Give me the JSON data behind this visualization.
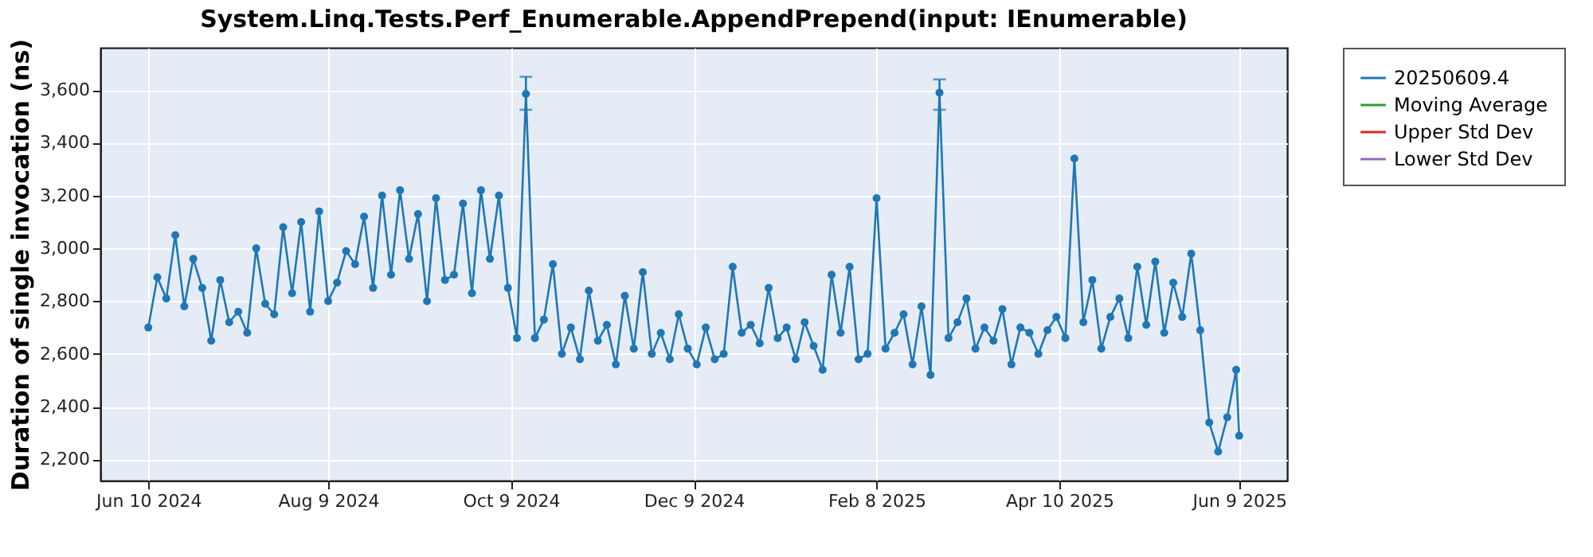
{
  "chart_data": {
    "type": "line",
    "title": "System.Linq.Tests.Perf_Enumerable.AppendPrepend(input: IEnumerable)",
    "ylabel": "Duration of single invocation (ns)",
    "x": [
      "2024-06-10",
      "2024-06-13",
      "2024-06-16",
      "2024-06-19",
      "2024-06-22",
      "2024-06-25",
      "2024-06-28",
      "2024-07-01",
      "2024-07-04",
      "2024-07-07",
      "2024-07-10",
      "2024-07-13",
      "2024-07-16",
      "2024-07-19",
      "2024-07-22",
      "2024-07-25",
      "2024-07-28",
      "2024-07-31",
      "2024-08-03",
      "2024-08-06",
      "2024-08-09",
      "2024-08-12",
      "2024-08-15",
      "2024-08-18",
      "2024-08-21",
      "2024-08-24",
      "2024-08-27",
      "2024-08-30",
      "2024-09-02",
      "2024-09-05",
      "2024-09-08",
      "2024-09-11",
      "2024-09-14",
      "2024-09-17",
      "2024-09-20",
      "2024-09-23",
      "2024-09-26",
      "2024-09-29",
      "2024-10-02",
      "2024-10-05",
      "2024-10-08",
      "2024-10-11",
      "2024-10-14",
      "2024-10-17",
      "2024-10-20",
      "2024-10-23",
      "2024-10-26",
      "2024-10-29",
      "2024-11-01",
      "2024-11-04",
      "2024-11-07",
      "2024-11-10",
      "2024-11-13",
      "2024-11-16",
      "2024-11-19",
      "2024-11-22",
      "2024-11-25",
      "2024-11-28",
      "2024-12-01",
      "2024-12-04",
      "2024-12-07",
      "2024-12-10",
      "2024-12-13",
      "2024-12-16",
      "2024-12-19",
      "2024-12-22",
      "2024-12-25",
      "2024-12-28",
      "2024-12-31",
      "2025-01-03",
      "2025-01-06",
      "2025-01-09",
      "2025-01-12",
      "2025-01-15",
      "2025-01-18",
      "2025-01-21",
      "2025-01-24",
      "2025-01-27",
      "2025-01-30",
      "2025-02-02",
      "2025-02-05",
      "2025-02-08",
      "2025-02-11",
      "2025-02-14",
      "2025-02-17",
      "2025-02-20",
      "2025-02-23",
      "2025-02-26",
      "2025-03-01",
      "2025-03-04",
      "2025-03-07",
      "2025-03-10",
      "2025-03-13",
      "2025-03-16",
      "2025-03-19",
      "2025-03-22",
      "2025-03-25",
      "2025-03-28",
      "2025-03-31",
      "2025-04-03",
      "2025-04-06",
      "2025-04-09",
      "2025-04-12",
      "2025-04-15",
      "2025-04-18",
      "2025-04-21",
      "2025-04-24",
      "2025-04-27",
      "2025-04-30",
      "2025-05-03",
      "2025-05-06",
      "2025-05-09",
      "2025-05-12",
      "2025-05-15",
      "2025-05-18",
      "2025-05-21",
      "2025-05-24",
      "2025-05-27",
      "2025-05-30",
      "2025-06-02",
      "2025-06-05",
      "2025-06-08",
      "2025-06-09"
    ],
    "series": [
      {
        "name": "20250609.4",
        "color": "#1f77b4",
        "values": [
          2700,
          2890,
          2810,
          3050,
          2780,
          2960,
          2850,
          2650,
          2880,
          2720,
          2760,
          2680,
          3000,
          2790,
          2750,
          3080,
          2830,
          3100,
          2760,
          3140,
          2800,
          2870,
          2990,
          2940,
          3120,
          2850,
          3200,
          2900,
          3220,
          2960,
          3130,
          2800,
          3190,
          2880,
          2900,
          3170,
          2830,
          3220,
          2960,
          3200,
          2850,
          2660,
          3585,
          2660,
          2730,
          2940,
          2600,
          2700,
          2580,
          2840,
          2650,
          2710,
          2560,
          2820,
          2620,
          2910,
          2600,
          2680,
          2580,
          2750,
          2620,
          2560,
          2700,
          2580,
          2600,
          2930,
          2680,
          2710,
          2640,
          2850,
          2660,
          2700,
          2580,
          2720,
          2630,
          2540,
          2900,
          2680,
          2930,
          2580,
          2600,
          3190,
          2620,
          2680,
          2750,
          2560,
          2780,
          2520,
          3590,
          2660,
          2720,
          2810,
          2620,
          2700,
          2650,
          2770,
          2560,
          2700,
          2680,
          2600,
          2690,
          2740,
          2660,
          3340,
          2720,
          2880,
          2620,
          2740,
          2810,
          2660,
          2930,
          2710,
          2950,
          2680,
          2870,
          2740,
          2980,
          2690,
          2340,
          2230,
          2360,
          2540,
          2290
        ],
        "errors": [
          null,
          null,
          null,
          null,
          null,
          null,
          null,
          null,
          null,
          null,
          null,
          null,
          null,
          null,
          null,
          null,
          null,
          null,
          null,
          null,
          null,
          null,
          null,
          null,
          null,
          null,
          null,
          null,
          null,
          null,
          null,
          null,
          null,
          null,
          null,
          null,
          null,
          null,
          null,
          null,
          null,
          null,
          [
            3525,
            3650
          ],
          null,
          null,
          null,
          null,
          null,
          null,
          null,
          null,
          null,
          null,
          null,
          null,
          null,
          null,
          null,
          null,
          null,
          null,
          null,
          null,
          null,
          null,
          null,
          null,
          null,
          null,
          null,
          null,
          null,
          null,
          null,
          null,
          null,
          null,
          null,
          null,
          null,
          null,
          null,
          null,
          null,
          null,
          null,
          null,
          null,
          [
            3525,
            3640
          ],
          null,
          null,
          null,
          null,
          null,
          null,
          null,
          null,
          null,
          null,
          null,
          null,
          null,
          null,
          null,
          null,
          null,
          null,
          null,
          null,
          null,
          null,
          null,
          null,
          null,
          null,
          null,
          null,
          null,
          null,
          null,
          null,
          null,
          null
        ]
      },
      {
        "name": "Moving Average",
        "color": "#2ca02c",
        "values": [
          null,
          null,
          null,
          null,
          null,
          null,
          null,
          null,
          null,
          null,
          null,
          null,
          null,
          null,
          null,
          null,
          null,
          null,
          null,
          null,
          null,
          null,
          null,
          null,
          null,
          null,
          null,
          null,
          null,
          null,
          null,
          null,
          null,
          null,
          null,
          null,
          null,
          null,
          null,
          null,
          null,
          null,
          null,
          null,
          null,
          null,
          null,
          null,
          null,
          null,
          null,
          null,
          null,
          null,
          null,
          null,
          null,
          null,
          null,
          null,
          null,
          null,
          null,
          null,
          null,
          null,
          null,
          null,
          null,
          null,
          null,
          null,
          null,
          null,
          null,
          null,
          null,
          null,
          null,
          null,
          null,
          null,
          null,
          null,
          null,
          null,
          null,
          null,
          null,
          null,
          null,
          null,
          null,
          null,
          null,
          null,
          null,
          null,
          null,
          null,
          null,
          null,
          null,
          null,
          null,
          null,
          null,
          null,
          null,
          null,
          null,
          null,
          null,
          null,
          null,
          null,
          null,
          null,
          null,
          null,
          null,
          null,
          null
        ]
      },
      {
        "name": "Upper Std Dev",
        "color": "#d62728",
        "values": [
          null,
          null,
          null,
          null,
          null,
          null,
          null,
          null,
          null,
          null,
          null,
          null,
          null,
          null,
          null,
          null,
          null,
          null,
          null,
          null,
          null,
          null,
          null,
          null,
          null,
          null,
          null,
          null,
          null,
          null,
          null,
          null,
          null,
          null,
          null,
          null,
          null,
          null,
          null,
          null,
          null,
          null,
          null,
          null,
          null,
          null,
          null,
          null,
          null,
          null,
          null,
          null,
          null,
          null,
          null,
          null,
          null,
          null,
          null,
          null,
          null,
          null,
          null,
          null,
          null,
          null,
          null,
          null,
          null,
          null,
          null,
          null,
          null,
          null,
          null,
          null,
          null,
          null,
          null,
          null,
          null,
          null,
          null,
          null,
          null,
          null,
          null,
          null,
          null,
          null,
          null,
          null,
          null,
          null,
          null,
          null,
          null,
          null,
          null,
          null,
          null,
          null,
          null,
          null,
          null,
          null,
          null,
          null,
          null,
          null,
          null,
          null,
          null,
          null,
          null,
          null,
          null,
          null,
          null,
          null,
          null,
          null,
          null
        ]
      },
      {
        "name": "Lower Std Dev",
        "color": "#9467bd",
        "values": [
          null,
          null,
          null,
          null,
          null,
          null,
          null,
          null,
          null,
          null,
          null,
          null,
          null,
          null,
          null,
          null,
          null,
          null,
          null,
          null,
          null,
          null,
          null,
          null,
          null,
          null,
          null,
          null,
          null,
          null,
          null,
          null,
          null,
          null,
          null,
          null,
          null,
          null,
          null,
          null,
          null,
          null,
          null,
          null,
          null,
          null,
          null,
          null,
          null,
          null,
          null,
          null,
          null,
          null,
          null,
          null,
          null,
          null,
          null,
          null,
          null,
          null,
          null,
          null,
          null,
          null,
          null,
          null,
          null,
          null,
          null,
          null,
          null,
          null,
          null,
          null,
          null,
          null,
          null,
          null,
          null,
          null,
          null,
          null,
          null,
          null,
          null,
          null,
          null,
          null,
          null,
          null,
          null,
          null,
          null,
          null,
          null,
          null,
          null,
          null,
          null,
          null,
          null,
          null,
          null,
          null,
          null,
          null,
          null,
          null,
          null,
          null,
          null,
          null,
          null,
          null,
          null,
          null,
          null,
          null,
          null,
          null,
          null
        ]
      }
    ],
    "xlim": [
      "2024-05-25",
      "2025-06-25"
    ],
    "xticks": [
      {
        "value": "2024-06-10",
        "label": "Jun 10 2024"
      },
      {
        "value": "2024-08-09",
        "label": "Aug 9 2024"
      },
      {
        "value": "2024-10-09",
        "label": "Oct 9 2024"
      },
      {
        "value": "2024-12-09",
        "label": "Dec 9 2024"
      },
      {
        "value": "2025-02-08",
        "label": "Feb 8 2025"
      },
      {
        "value": "2025-04-10",
        "label": "Apr 10 2025"
      },
      {
        "value": "2025-06-09",
        "label": "Jun 9 2025"
      }
    ],
    "ylim": [
      2120,
      3760
    ],
    "yticks": [
      {
        "value": 2200,
        "label": "2,200"
      },
      {
        "value": 2400,
        "label": "2,400"
      },
      {
        "value": 2600,
        "label": "2,600"
      },
      {
        "value": 2800,
        "label": "2,800"
      },
      {
        "value": 3000,
        "label": "3,000"
      },
      {
        "value": 3200,
        "label": "3,200"
      },
      {
        "value": 3400,
        "label": "3,400"
      },
      {
        "value": 3600,
        "label": "3,600"
      }
    ],
    "grid": true,
    "legend": "right",
    "marker": "circle",
    "line_style": "solid"
  }
}
